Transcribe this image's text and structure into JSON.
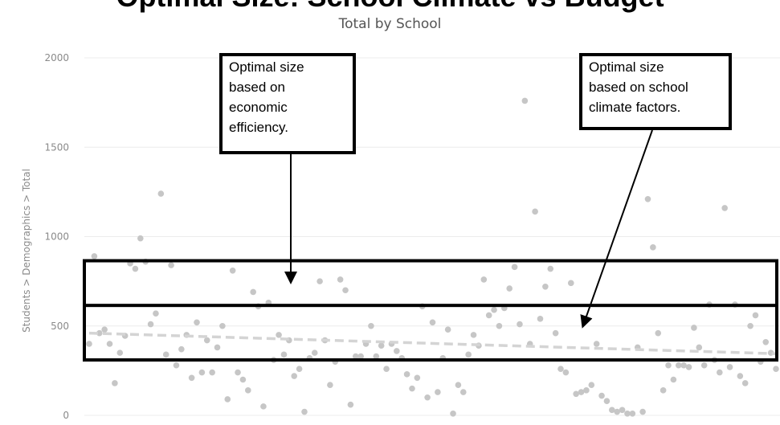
{
  "page_heading": "Optimal Size: School Climate vs Budget",
  "chart_data": {
    "type": "scatter",
    "title": "Total by School",
    "xlabel": "",
    "ylabel": "Students > Demographics > Total",
    "ylim": [
      0,
      2000
    ],
    "yticks": [
      0,
      500,
      1000,
      1500,
      2000
    ],
    "grid": true,
    "trendline": {
      "style": "dashed",
      "start": 460,
      "end": 345
    },
    "points": [
      [
        0,
        400
      ],
      [
        1,
        890
      ],
      [
        2,
        460
      ],
      [
        3,
        480
      ],
      [
        4,
        400
      ],
      [
        5,
        180
      ],
      [
        6,
        350
      ],
      [
        7,
        445
      ],
      [
        8,
        850
      ],
      [
        9,
        820
      ],
      [
        10,
        990
      ],
      [
        11,
        860
      ],
      [
        12,
        510
      ],
      [
        13,
        570
      ],
      [
        14,
        1240
      ],
      [
        15,
        340
      ],
      [
        16,
        840
      ],
      [
        17,
        280
      ],
      [
        18,
        370
      ],
      [
        19,
        450
      ],
      [
        20,
        210
      ],
      [
        21,
        520
      ],
      [
        22,
        240
      ],
      [
        23,
        420
      ],
      [
        24,
        240
      ],
      [
        25,
        380
      ],
      [
        26,
        500
      ],
      [
        27,
        90
      ],
      [
        28,
        810
      ],
      [
        29,
        240
      ],
      [
        30,
        200
      ],
      [
        31,
        140
      ],
      [
        32,
        690
      ],
      [
        33,
        610
      ],
      [
        34,
        50
      ],
      [
        35,
        630
      ],
      [
        36,
        310
      ],
      [
        37,
        450
      ],
      [
        38,
        340
      ],
      [
        39,
        420
      ],
      [
        40,
        220
      ],
      [
        41,
        260
      ],
      [
        42,
        20
      ],
      [
        43,
        320
      ],
      [
        44,
        350
      ],
      [
        45,
        750
      ],
      [
        46,
        420
      ],
      [
        47,
        170
      ],
      [
        48,
        300
      ],
      [
        49,
        760
      ],
      [
        50,
        700
      ],
      [
        51,
        60
      ],
      [
        52,
        330
      ],
      [
        53,
        330
      ],
      [
        54,
        400
      ],
      [
        55,
        500
      ],
      [
        56,
        330
      ],
      [
        57,
        390
      ],
      [
        58,
        260
      ],
      [
        59,
        400
      ],
      [
        60,
        360
      ],
      [
        61,
        320
      ],
      [
        62,
        230
      ],
      [
        63,
        150
      ],
      [
        64,
        210
      ],
      [
        65,
        610
      ],
      [
        66,
        100
      ],
      [
        67,
        520
      ],
      [
        68,
        130
      ],
      [
        69,
        320
      ],
      [
        70,
        480
      ],
      [
        71,
        10
      ],
      [
        72,
        170
      ],
      [
        73,
        130
      ],
      [
        74,
        340
      ],
      [
        75,
        450
      ],
      [
        76,
        390
      ],
      [
        77,
        760
      ],
      [
        78,
        560
      ],
      [
        79,
        590
      ],
      [
        80,
        500
      ],
      [
        81,
        600
      ],
      [
        82,
        710
      ],
      [
        83,
        830
      ],
      [
        84,
        510
      ],
      [
        85,
        1760
      ],
      [
        86,
        400
      ],
      [
        87,
        1140
      ],
      [
        88,
        540
      ],
      [
        89,
        720
      ],
      [
        90,
        820
      ],
      [
        91,
        460
      ],
      [
        92,
        260
      ],
      [
        93,
        240
      ],
      [
        94,
        740
      ],
      [
        95,
        120
      ],
      [
        96,
        130
      ],
      [
        97,
        140
      ],
      [
        98,
        170
      ],
      [
        99,
        400
      ],
      [
        100,
        110
      ],
      [
        101,
        80
      ],
      [
        102,
        30
      ],
      [
        103,
        20
      ],
      [
        104,
        30
      ],
      [
        105,
        10
      ],
      [
        106,
        10
      ],
      [
        107,
        380
      ],
      [
        108,
        20
      ],
      [
        109,
        1210
      ],
      [
        110,
        940
      ],
      [
        111,
        460
      ],
      [
        112,
        140
      ],
      [
        113,
        280
      ],
      [
        114,
        200
      ],
      [
        115,
        280
      ],
      [
        116,
        280
      ],
      [
        117,
        270
      ],
      [
        118,
        490
      ],
      [
        119,
        380
      ],
      [
        120,
        280
      ],
      [
        121,
        620
      ],
      [
        122,
        310
      ],
      [
        123,
        240
      ],
      [
        124,
        1160
      ],
      [
        125,
        270
      ],
      [
        126,
        620
      ],
      [
        127,
        220
      ],
      [
        128,
        180
      ],
      [
        129,
        500
      ],
      [
        130,
        560
      ],
      [
        131,
        300
      ],
      [
        132,
        410
      ],
      [
        133,
        350
      ],
      [
        134,
        260
      ]
    ]
  },
  "annotations": {
    "callout_1": "Optimal size\nbased on\neconomic\nefficiency.",
    "callout_2": "Optimal size\nbased on school\nclimate factors."
  },
  "bands": [
    {
      "name": "economic-efficiency-band",
      "y_range": [
        310,
        615
      ]
    },
    {
      "name": "school-climate-band",
      "y_range": [
        310,
        865
      ]
    }
  ],
  "colors": {
    "points": "#c6c6c6",
    "trend": "#d4d4d4",
    "grid": "#ececec",
    "box": "#000000"
  }
}
